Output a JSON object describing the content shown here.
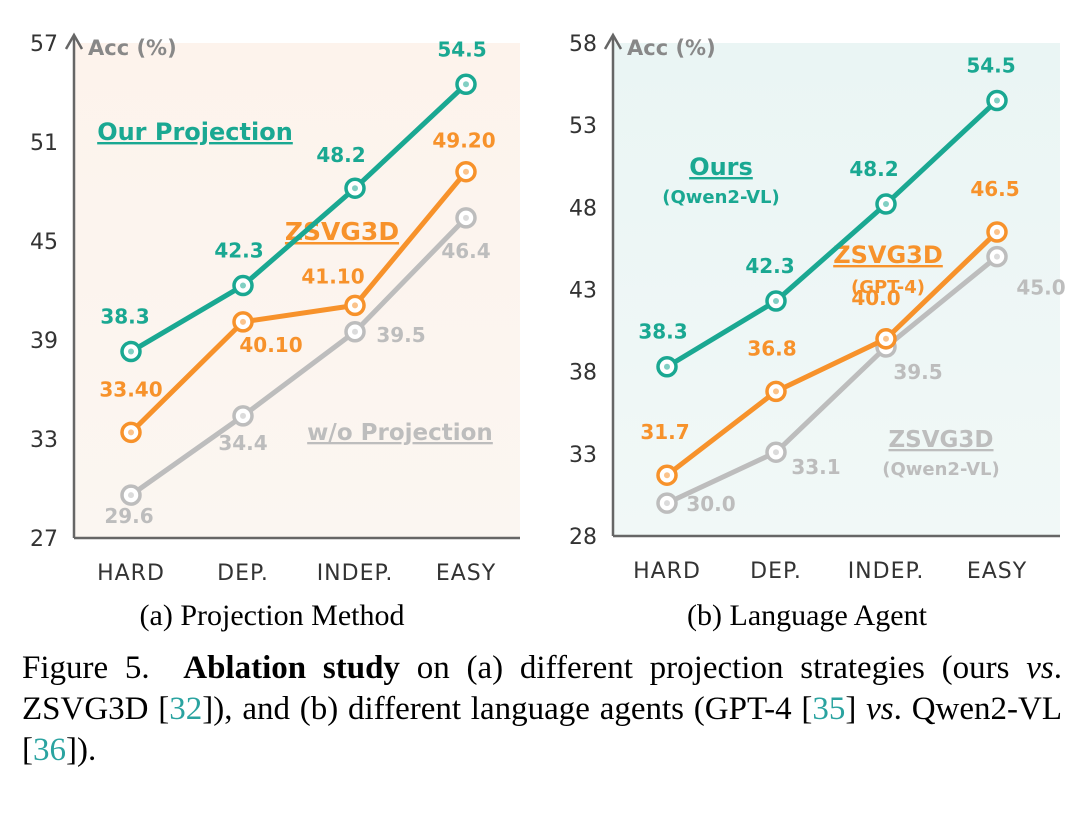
{
  "chart_data": [
    {
      "type": "line",
      "ylabel": "Acc (%)",
      "categories": [
        "HARD",
        "DEP.",
        "INDEP.",
        "EASY"
      ],
      "yticks": [
        27,
        33,
        39,
        45,
        51,
        57
      ],
      "ylim": [
        27,
        57
      ],
      "caption": "(a) Projection Method",
      "series": [
        {
          "name": "w/o Projection",
          "sub": "",
          "color": "#bdbdbd",
          "values": [
            29.6,
            34.4,
            39.5,
            46.4
          ],
          "labels": [
            "29.6",
            "34.4",
            "39.5",
            "46.4"
          ]
        },
        {
          "name": "ZSVG3D",
          "sub": "",
          "color": "#f7922b",
          "values": [
            33.4,
            40.1,
            41.1,
            49.2
          ],
          "labels": [
            "33.40",
            "40.10",
            "41.10",
            "49.20"
          ]
        },
        {
          "name": "Our Projection",
          "sub": "",
          "color": "#1aa892",
          "values": [
            38.3,
            42.3,
            48.2,
            54.5
          ],
          "labels": [
            "38.3",
            "42.3",
            "48.2",
            "54.5"
          ]
        }
      ]
    },
    {
      "type": "line",
      "ylabel": "Acc (%)",
      "categories": [
        "HARD",
        "DEP.",
        "INDEP.",
        "EASY"
      ],
      "yticks": [
        28,
        33,
        38,
        43,
        48,
        53,
        58
      ],
      "ylim": [
        28,
        58
      ],
      "caption": "(b) Language Agent",
      "series": [
        {
          "name": "ZSVG3D",
          "sub": "(Qwen2-VL)",
          "color": "#bdbdbd",
          "values": [
            30.0,
            33.1,
            39.5,
            45.0
          ],
          "labels": [
            "30.0",
            "33.1",
            "39.5",
            "45.0"
          ]
        },
        {
          "name": "ZSVG3D",
          "sub": "(GPT-4)",
          "color": "#f7922b",
          "values": [
            31.7,
            36.8,
            40.0,
            46.5
          ],
          "labels": [
            "31.7",
            "36.8",
            "40.0",
            "46.5"
          ]
        },
        {
          "name": "Ours",
          "sub": "(Qwen2-VL)",
          "color": "#1aa892",
          "values": [
            38.3,
            42.3,
            48.2,
            54.5
          ],
          "labels": [
            "38.3",
            "42.3",
            "48.2",
            "54.5"
          ]
        }
      ]
    }
  ],
  "caption": {
    "prefix": "Figure 5.",
    "bold": "Ablation study",
    "text1": " on (a) different projection strategies (ours ",
    "vs1": "vs",
    "text2": ". ZSVG3D [",
    "ref1": "32",
    "text3": "]), and (b) different language agents (GPT-4 [",
    "ref2": "35",
    "text4": "] ",
    "vs2": "vs",
    "text5": ". Qwen2-VL [",
    "ref3": "36",
    "text6": "])."
  }
}
